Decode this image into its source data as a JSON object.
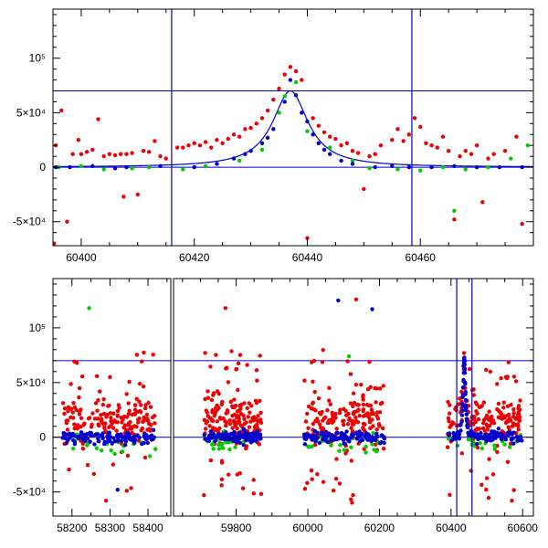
{
  "chart_data": [
    {
      "type": "scatter",
      "title": "",
      "xlabel": "",
      "ylabel": "",
      "xlim": [
        60395,
        60480
      ],
      "ylim": [
        -72000,
        145000
      ],
      "x_ticks": [
        {
          "value": 60400,
          "label": "60400"
        },
        {
          "value": 60420,
          "label": "60420"
        },
        {
          "value": 60440,
          "label": "60440"
        },
        {
          "value": 60460,
          "label": "60460"
        }
      ],
      "y_ticks": [
        {
          "value": -50000,
          "label": "-5×10⁴"
        },
        {
          "value": 0,
          "label": "0"
        },
        {
          "value": 50000,
          "label": "5×10⁴"
        },
        {
          "value": 100000,
          "label": "10⁵"
        }
      ],
      "reference_lines": {
        "horizontal": [
          0,
          70000
        ],
        "vertical": [
          60416,
          60458.5
        ]
      },
      "model_curve": {
        "color": "#0000cc",
        "t0": 60437,
        "peak": 70000,
        "width": 3.8,
        "baseline": 0
      },
      "series": [
        {
          "color": "#ee0000",
          "points": [
            [
              60395.5,
              20000
            ],
            [
              60396.5,
              52000
            ],
            [
              60397.5,
              -50000
            ],
            [
              60398.5,
              12000
            ],
            [
              60399.5,
              25000
            ],
            [
              60401,
              14000
            ],
            [
              60402,
              16000
            ],
            [
              60403,
              44000
            ],
            [
              60404,
              10000
            ],
            [
              60405,
              12000
            ],
            [
              60406,
              11000
            ],
            [
              60407,
              12000
            ],
            [
              60408,
              12000
            ],
            [
              60409,
              13000
            ],
            [
              60411,
              15000
            ],
            [
              60412,
              14000
            ],
            [
              60413,
              24000
            ],
            [
              60414,
              10000
            ],
            [
              60415,
              8000
            ],
            [
              60417,
              18000
            ],
            [
              60418,
              18000
            ],
            [
              60419,
              20000
            ],
            [
              60420,
              22000
            ],
            [
              60421,
              20000
            ],
            [
              60422,
              23000
            ],
            [
              60423,
              18000
            ],
            [
              60424,
              25000
            ],
            [
              60425,
              22000
            ],
            [
              60426,
              26000
            ],
            [
              60427,
              30000
            ],
            [
              60428,
              28000
            ],
            [
              60429,
              35000
            ],
            [
              60430,
              36000
            ],
            [
              60431,
              40000
            ],
            [
              60432,
              45000
            ],
            [
              60433,
              52000
            ],
            [
              60434,
              62000
            ],
            [
              60435,
              72000
            ],
            [
              60436,
              85000
            ],
            [
              60437,
              92000
            ],
            [
              60438,
              88000
            ],
            [
              60439,
              80000
            ],
            [
              60440,
              -65000
            ],
            [
              60441,
              45000
            ],
            [
              60442,
              38000
            ],
            [
              60443,
              32000
            ],
            [
              60444,
              28000
            ],
            [
              60445,
              26000
            ],
            [
              60446,
              20000
            ],
            [
              60447,
              22000
            ],
            [
              60448,
              15000
            ],
            [
              60449,
              13000
            ],
            [
              60450,
              -20000
            ],
            [
              60451,
              10000
            ],
            [
              60452,
              12000
            ],
            [
              60453,
              20000
            ],
            [
              60455,
              25000
            ],
            [
              60456,
              35000
            ],
            [
              60457,
              24000
            ],
            [
              60458,
              30000
            ],
            [
              60459,
              45000
            ],
            [
              60460,
              37000
            ],
            [
              60461,
              22000
            ],
            [
              60462,
              20000
            ],
            [
              60463,
              18000
            ],
            [
              60464,
              28000
            ],
            [
              60465,
              15000
            ],
            [
              60466,
              -48000
            ],
            [
              60467,
              10000
            ],
            [
              60468,
              15000
            ],
            [
              60469,
              12000
            ],
            [
              60470,
              20000
            ],
            [
              60471,
              -32000
            ],
            [
              60472,
              8000
            ],
            [
              60473,
              12000
            ],
            [
              60475,
              15000
            ],
            [
              60477,
              28000
            ],
            [
              60478,
              -52000
            ],
            [
              60410,
              -25000
            ],
            [
              60400,
              12000
            ],
            [
              60395.2,
              -70000
            ],
            [
              60407.5,
              -27000
            ]
          ]
        },
        {
          "color": "#00cc00",
          "points": [
            [
              60396,
              0
            ],
            [
              60400,
              1000
            ],
            [
              60404,
              -2000
            ],
            [
              60409,
              -1000
            ],
            [
              60412,
              0
            ],
            [
              60418,
              -2000
            ],
            [
              60422,
              1000
            ],
            [
              60428,
              6000
            ],
            [
              60432,
              16000
            ],
            [
              60435,
              50000
            ],
            [
              60436,
              65000
            ],
            [
              60438,
              78000
            ],
            [
              60440,
              33000
            ],
            [
              60444,
              18000
            ],
            [
              60448,
              6000
            ],
            [
              60451,
              -1000
            ],
            [
              60456,
              -2000
            ],
            [
              60460,
              -3000
            ],
            [
              60464,
              0
            ],
            [
              60466,
              -40000
            ],
            [
              60468,
              -2000
            ],
            [
              60472,
              0
            ],
            [
              60476,
              8000
            ],
            [
              60479,
              20000
            ]
          ]
        },
        {
          "color": "#0000cc",
          "points": [
            [
              60395.5,
              0
            ],
            [
              60398,
              0
            ],
            [
              60402,
              1000
            ],
            [
              60406,
              -1000
            ],
            [
              60408,
              0
            ],
            [
              60414,
              1000
            ],
            [
              60420,
              0
            ],
            [
              60424,
              3000
            ],
            [
              60427,
              8000
            ],
            [
              60430,
              15000
            ],
            [
              60432,
              22000
            ],
            [
              60434,
              35000
            ],
            [
              60436,
              60000
            ],
            [
              60437,
              80000
            ],
            [
              60438,
              66000
            ],
            [
              60440,
              42000
            ],
            [
              60442,
              22000
            ],
            [
              60444,
              12000
            ],
            [
              60446,
              6000
            ],
            [
              60448,
              3000
            ],
            [
              60452,
              0
            ],
            [
              60455,
              1000
            ],
            [
              60458,
              0
            ],
            [
              60462,
              0
            ],
            [
              60466,
              1000
            ],
            [
              60470,
              0
            ],
            [
              60474,
              0
            ],
            [
              60478,
              0
            ],
            [
              60439,
              50000
            ],
            [
              60441,
              30000
            ],
            [
              60443,
              16000
            ],
            [
              60433,
              27000
            ],
            [
              60429,
              12000
            ]
          ]
        }
      ]
    },
    {
      "type": "scatter",
      "title": "",
      "xlabel": "",
      "ylabel": "",
      "ylim": [
        -72000,
        145000
      ],
      "broken_axis": true,
      "segments": [
        {
          "xlim": [
            58150,
            58460
          ],
          "x_ticks": [
            {
              "value": 58200,
              "label": "58200"
            },
            {
              "value": 58300,
              "label": "58300"
            },
            {
              "value": 58400,
              "label": "58400"
            }
          ]
        },
        {
          "xlim": [
            59625,
            60630
          ],
          "x_ticks": [
            {
              "value": 59800,
              "label": "59800"
            },
            {
              "value": 60000,
              "label": "60000"
            },
            {
              "value": 60200,
              "label": "60200"
            },
            {
              "value": 60400,
              "label": "60400"
            },
            {
              "value": 60600,
              "label": "60600"
            }
          ]
        }
      ],
      "y_ticks": [
        {
          "value": -50000,
          "label": "-5×10⁴"
        },
        {
          "value": 0,
          "label": "0"
        },
        {
          "value": 50000,
          "label": "5×10⁴"
        },
        {
          "value": 100000,
          "label": "10⁵"
        }
      ],
      "reference_lines": {
        "horizontal": [
          0,
          70000
        ],
        "vertical": [
          60416,
          60458.5
        ]
      },
      "seasons": [
        {
          "start": 58175,
          "end": 58420
        },
        {
          "start": 59710,
          "end": 59870
        },
        {
          "start": 59990,
          "end": 60215
        },
        {
          "start": 60390,
          "end": 60600
        }
      ],
      "season_spread": {
        "red_center": 15000,
        "red_core": 10000,
        "red_outlier_fraction": 0.25,
        "blue_center": 0,
        "blue_core": 2500,
        "green_center": -5000,
        "green_core": 5000
      },
      "points_per_season": {
        "red": 180,
        "blue": 120,
        "green": 25
      },
      "peak_event": {
        "t0": 60437,
        "peak": 70000,
        "width": 3.8
      },
      "notable_points": [
        {
          "color": "#00cc00",
          "x": 58245,
          "y": 118000
        },
        {
          "color": "#ee0000",
          "x": 59770,
          "y": 118000
        },
        {
          "color": "#0000cc",
          "x": 60085,
          "y": 125000
        },
        {
          "color": "#ee0000",
          "x": 60135,
          "y": 126000
        },
        {
          "color": "#0000cc",
          "x": 60180,
          "y": 117000
        },
        {
          "color": "#00cc00",
          "x": 60115,
          "y": 74000
        },
        {
          "color": "#ee0000",
          "x": 59800,
          "y": 62000
        },
        {
          "color": "#ee0000",
          "x": 58300,
          "y": 55000
        },
        {
          "color": "#0000cc",
          "x": 58320,
          "y": -48000
        }
      ]
    }
  ]
}
